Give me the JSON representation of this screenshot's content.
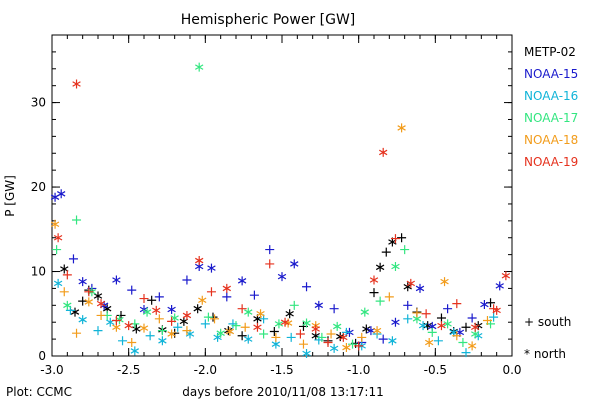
{
  "chart_data": {
    "type": "scatter",
    "title": "Hemispheric Power [GW]",
    "xlabel": "days before 2010/11/08 13:17:11",
    "ylabel": "P [GW]",
    "xlim": [
      -3.0,
      0.0
    ],
    "ylim": [
      0,
      38
    ],
    "x_ticks": [
      "-3.0",
      "-2.5",
      "-2.0",
      "-1.5",
      "-1.0",
      "-0.5",
      "0.0"
    ],
    "y_ticks": [
      "0",
      "10",
      "20",
      "30"
    ],
    "grid": false,
    "legend_position": "right",
    "credit": "Plot: CCMC",
    "markers_legend": [
      {
        "label": "+ south",
        "symbol": "+"
      },
      {
        "label": "* north",
        "symbol": "*"
      }
    ],
    "series": [
      {
        "name": "METP-02",
        "color": "#000000",
        "points": [
          [
            -2.92,
            10.3,
            "n"
          ],
          [
            -2.85,
            5.2,
            "n"
          ],
          [
            -2.8,
            6.5,
            "s"
          ],
          [
            -2.76,
            7.8,
            "s"
          ],
          [
            -2.7,
            7.1,
            "n"
          ],
          [
            -2.64,
            5.6,
            "n"
          ],
          [
            -2.55,
            4.8,
            "s"
          ],
          [
            -2.45,
            3.2,
            "n"
          ],
          [
            -2.35,
            6.6,
            "s"
          ],
          [
            -2.28,
            3.1,
            "n"
          ],
          [
            -2.2,
            2.7,
            "s"
          ],
          [
            -2.14,
            4.1,
            "n"
          ],
          [
            -2.05,
            5.6,
            "n"
          ],
          [
            -1.95,
            4.6,
            "s"
          ],
          [
            -1.85,
            3.0,
            "n"
          ],
          [
            -1.76,
            2.4,
            "s"
          ],
          [
            -1.66,
            4.4,
            "n"
          ],
          [
            -1.55,
            2.9,
            "s"
          ],
          [
            -1.45,
            5.0,
            "n"
          ],
          [
            -1.36,
            3.5,
            "s"
          ],
          [
            -1.28,
            2.4,
            "n"
          ],
          [
            -1.2,
            1.8,
            "s"
          ],
          [
            -1.12,
            2.3,
            "n"
          ],
          [
            -1.02,
            1.5,
            "s"
          ],
          [
            -0.95,
            3.2,
            "n"
          ],
          [
            -0.9,
            7.5,
            "s"
          ],
          [
            -0.86,
            10.5,
            "n"
          ],
          [
            -0.82,
            12.3,
            "s"
          ],
          [
            -0.78,
            13.5,
            "n"
          ],
          [
            -0.72,
            14.0,
            "s"
          ],
          [
            -0.68,
            8.2,
            "n"
          ],
          [
            -0.62,
            5.2,
            "s"
          ],
          [
            -0.55,
            3.6,
            "n"
          ],
          [
            -0.46,
            4.5,
            "s"
          ],
          [
            -0.38,
            2.9,
            "n"
          ],
          [
            -0.3,
            3.4,
            "s"
          ],
          [
            -0.22,
            3.6,
            "n"
          ],
          [
            -0.14,
            6.3,
            "s"
          ]
        ]
      },
      {
        "name": "NOAA-15",
        "color": "#1a1acc",
        "points": [
          [
            -2.98,
            18.8,
            "n"
          ],
          [
            -2.94,
            19.2,
            "n"
          ],
          [
            -2.86,
            11.5,
            "s"
          ],
          [
            -2.8,
            8.8,
            "n"
          ],
          [
            -2.74,
            8.0,
            "s"
          ],
          [
            -2.66,
            6.0,
            "n"
          ],
          [
            -2.58,
            9.0,
            "n"
          ],
          [
            -2.48,
            7.8,
            "s"
          ],
          [
            -2.4,
            5.5,
            "n"
          ],
          [
            -2.3,
            7.0,
            "s"
          ],
          [
            -2.22,
            5.5,
            "n"
          ],
          [
            -2.12,
            9.0,
            "s"
          ],
          [
            -2.04,
            10.6,
            "n"
          ],
          [
            -1.96,
            10.4,
            "n"
          ],
          [
            -1.86,
            7.0,
            "s"
          ],
          [
            -1.76,
            8.9,
            "n"
          ],
          [
            -1.68,
            7.2,
            "s"
          ],
          [
            -1.58,
            12.6,
            "s"
          ],
          [
            -1.5,
            9.4,
            "n"
          ],
          [
            -1.42,
            10.9,
            "n"
          ],
          [
            -1.34,
            8.2,
            "s"
          ],
          [
            -1.26,
            6.0,
            "n"
          ],
          [
            -1.16,
            5.6,
            "s"
          ],
          [
            -1.06,
            2.8,
            "n"
          ],
          [
            -0.98,
            1.6,
            "s"
          ],
          [
            -0.92,
            3.0,
            "n"
          ],
          [
            -0.84,
            2.0,
            "s"
          ],
          [
            -0.76,
            4.0,
            "n"
          ],
          [
            -0.68,
            6.0,
            "s"
          ],
          [
            -0.6,
            8.0,
            "n"
          ],
          [
            -0.52,
            3.5,
            "n"
          ],
          [
            -0.42,
            5.6,
            "s"
          ],
          [
            -0.34,
            2.8,
            "n"
          ],
          [
            -0.26,
            4.5,
            "s"
          ],
          [
            -0.18,
            6.1,
            "n"
          ],
          [
            -0.08,
            8.3,
            "n"
          ]
        ]
      },
      {
        "name": "NOAA-16",
        "color": "#11b4d8",
        "points": [
          [
            -2.96,
            8.6,
            "n"
          ],
          [
            -2.88,
            5.4,
            "s"
          ],
          [
            -2.8,
            4.3,
            "n"
          ],
          [
            -2.7,
            3.0,
            "s"
          ],
          [
            -2.62,
            4.0,
            "n"
          ],
          [
            -2.54,
            1.8,
            "s"
          ],
          [
            -2.46,
            0.6,
            "n"
          ],
          [
            -2.36,
            2.4,
            "s"
          ],
          [
            -2.28,
            1.8,
            "n"
          ],
          [
            -2.18,
            3.4,
            "s"
          ],
          [
            -2.1,
            2.6,
            "n"
          ],
          [
            -2.0,
            3.8,
            "s"
          ],
          [
            -1.92,
            2.2,
            "n"
          ],
          [
            -1.82,
            3.8,
            "s"
          ],
          [
            -1.72,
            2.0,
            "n"
          ],
          [
            -1.62,
            4.4,
            "s"
          ],
          [
            -1.54,
            1.4,
            "n"
          ],
          [
            -1.44,
            2.2,
            "s"
          ],
          [
            -1.34,
            0.3,
            "n"
          ],
          [
            -1.26,
            1.9,
            "s"
          ],
          [
            -1.16,
            0.9,
            "n"
          ],
          [
            -1.08,
            2.8,
            "s"
          ],
          [
            -0.98,
            1.2,
            "n"
          ],
          [
            -0.88,
            2.6,
            "s"
          ],
          [
            -0.78,
            1.8,
            "n"
          ],
          [
            -0.68,
            4.4,
            "s"
          ],
          [
            -0.58,
            3.6,
            "n"
          ],
          [
            -0.48,
            1.8,
            "s"
          ],
          [
            -0.38,
            2.8,
            "n"
          ],
          [
            -0.3,
            0.4,
            "s"
          ],
          [
            -0.22,
            2.4,
            "n"
          ],
          [
            -0.12,
            4.6,
            "s"
          ]
        ]
      },
      {
        "name": "NOAA-17",
        "color": "#33e680",
        "points": [
          [
            -2.97,
            12.6,
            "s"
          ],
          [
            -2.9,
            6.0,
            "n"
          ],
          [
            -2.84,
            16.1,
            "s"
          ],
          [
            -2.74,
            7.6,
            "n"
          ],
          [
            -2.64,
            4.8,
            "s"
          ],
          [
            -2.56,
            4.3,
            "n"
          ],
          [
            -2.46,
            3.8,
            "s"
          ],
          [
            -2.38,
            5.2,
            "n"
          ],
          [
            -2.28,
            3.0,
            "s"
          ],
          [
            -2.2,
            4.5,
            "n"
          ],
          [
            -2.04,
            34.2,
            "n"
          ],
          [
            -1.98,
            4.6,
            "s"
          ],
          [
            -1.9,
            2.7,
            "n"
          ],
          [
            -1.8,
            3.6,
            "s"
          ],
          [
            -1.72,
            5.2,
            "n"
          ],
          [
            -1.62,
            2.6,
            "s"
          ],
          [
            -1.52,
            3.8,
            "n"
          ],
          [
            -1.42,
            6.0,
            "s"
          ],
          [
            -1.34,
            3.9,
            "n"
          ],
          [
            -1.24,
            2.2,
            "s"
          ],
          [
            -1.14,
            3.5,
            "n"
          ],
          [
            -1.04,
            1.4,
            "s"
          ],
          [
            -0.96,
            5.2,
            "n"
          ],
          [
            -0.86,
            6.5,
            "s"
          ],
          [
            -0.76,
            10.6,
            "n"
          ],
          [
            -0.7,
            12.6,
            "s"
          ],
          [
            -0.62,
            4.4,
            "n"
          ],
          [
            -0.52,
            2.8,
            "s"
          ],
          [
            -0.42,
            3.8,
            "n"
          ],
          [
            -0.32,
            1.6,
            "s"
          ],
          [
            -0.24,
            2.6,
            "n"
          ],
          [
            -0.14,
            3.8,
            "s"
          ]
        ]
      },
      {
        "name": "NOAA-18",
        "color": "#f29c1b",
        "points": [
          [
            -2.98,
            15.6,
            "n"
          ],
          [
            -2.92,
            7.6,
            "s"
          ],
          [
            -2.84,
            2.7,
            "s"
          ],
          [
            -2.76,
            6.4,
            "n"
          ],
          [
            -2.68,
            4.8,
            "s"
          ],
          [
            -2.58,
            3.4,
            "n"
          ],
          [
            -2.48,
            1.6,
            "s"
          ],
          [
            -2.4,
            3.3,
            "n"
          ],
          [
            -2.3,
            4.4,
            "s"
          ],
          [
            -2.22,
            2.6,
            "n"
          ],
          [
            -2.12,
            3.0,
            "s"
          ],
          [
            -2.02,
            6.6,
            "n"
          ],
          [
            -1.94,
            4.4,
            "s"
          ],
          [
            -1.84,
            2.9,
            "n"
          ],
          [
            -1.74,
            3.4,
            "s"
          ],
          [
            -1.64,
            5.0,
            "n"
          ],
          [
            -1.54,
            2.2,
            "s"
          ],
          [
            -1.46,
            3.9,
            "n"
          ],
          [
            -1.36,
            1.4,
            "s"
          ],
          [
            -1.28,
            3.6,
            "n"
          ],
          [
            -1.18,
            2.6,
            "s"
          ],
          [
            -1.08,
            1.0,
            "n"
          ],
          [
            -0.98,
            2.2,
            "s"
          ],
          [
            -0.88,
            3.0,
            "n"
          ],
          [
            -0.8,
            7.0,
            "s"
          ],
          [
            -0.72,
            27.0,
            "n"
          ],
          [
            -0.62,
            5.1,
            "s"
          ],
          [
            -0.54,
            1.6,
            "n"
          ],
          [
            -0.44,
            8.8,
            "n"
          ],
          [
            -0.36,
            2.4,
            "s"
          ],
          [
            -0.26,
            1.2,
            "n"
          ],
          [
            -0.16,
            4.2,
            "s"
          ]
        ]
      },
      {
        "name": "NOAA-19",
        "color": "#e5321e",
        "points": [
          [
            -2.96,
            14.0,
            "n"
          ],
          [
            -2.9,
            9.6,
            "s"
          ],
          [
            -2.84,
            32.2,
            "n"
          ],
          [
            -2.76,
            7.6,
            "s"
          ],
          [
            -2.68,
            6.2,
            "n"
          ],
          [
            -2.58,
            4.2,
            "s"
          ],
          [
            -2.5,
            3.6,
            "n"
          ],
          [
            -2.4,
            6.8,
            "s"
          ],
          [
            -2.32,
            5.4,
            "n"
          ],
          [
            -2.22,
            4.1,
            "s"
          ],
          [
            -2.12,
            4.8,
            "n"
          ],
          [
            -2.04,
            11.3,
            "n"
          ],
          [
            -1.96,
            7.6,
            "s"
          ],
          [
            -1.86,
            8.0,
            "n"
          ],
          [
            -1.76,
            5.6,
            "s"
          ],
          [
            -1.66,
            3.4,
            "n"
          ],
          [
            -1.58,
            10.9,
            "s"
          ],
          [
            -1.48,
            4.0,
            "n"
          ],
          [
            -1.38,
            2.6,
            "s"
          ],
          [
            -1.28,
            3.2,
            "n"
          ],
          [
            -1.2,
            1.6,
            "s"
          ],
          [
            -1.1,
            2.2,
            "n"
          ],
          [
            -1.0,
            1.2,
            "s"
          ],
          [
            -0.9,
            9.0,
            "n"
          ],
          [
            -0.84,
            24.1,
            "n"
          ],
          [
            -0.76,
            13.9,
            "s"
          ],
          [
            -0.66,
            8.6,
            "n"
          ],
          [
            -0.56,
            5.0,
            "s"
          ],
          [
            -0.46,
            3.6,
            "n"
          ],
          [
            -0.36,
            6.2,
            "s"
          ],
          [
            -0.24,
            3.4,
            "n"
          ],
          [
            -0.12,
            5.6,
            "s"
          ],
          [
            -0.04,
            9.5,
            "n"
          ],
          [
            -0.1,
            5.4,
            "n"
          ]
        ]
      }
    ]
  }
}
